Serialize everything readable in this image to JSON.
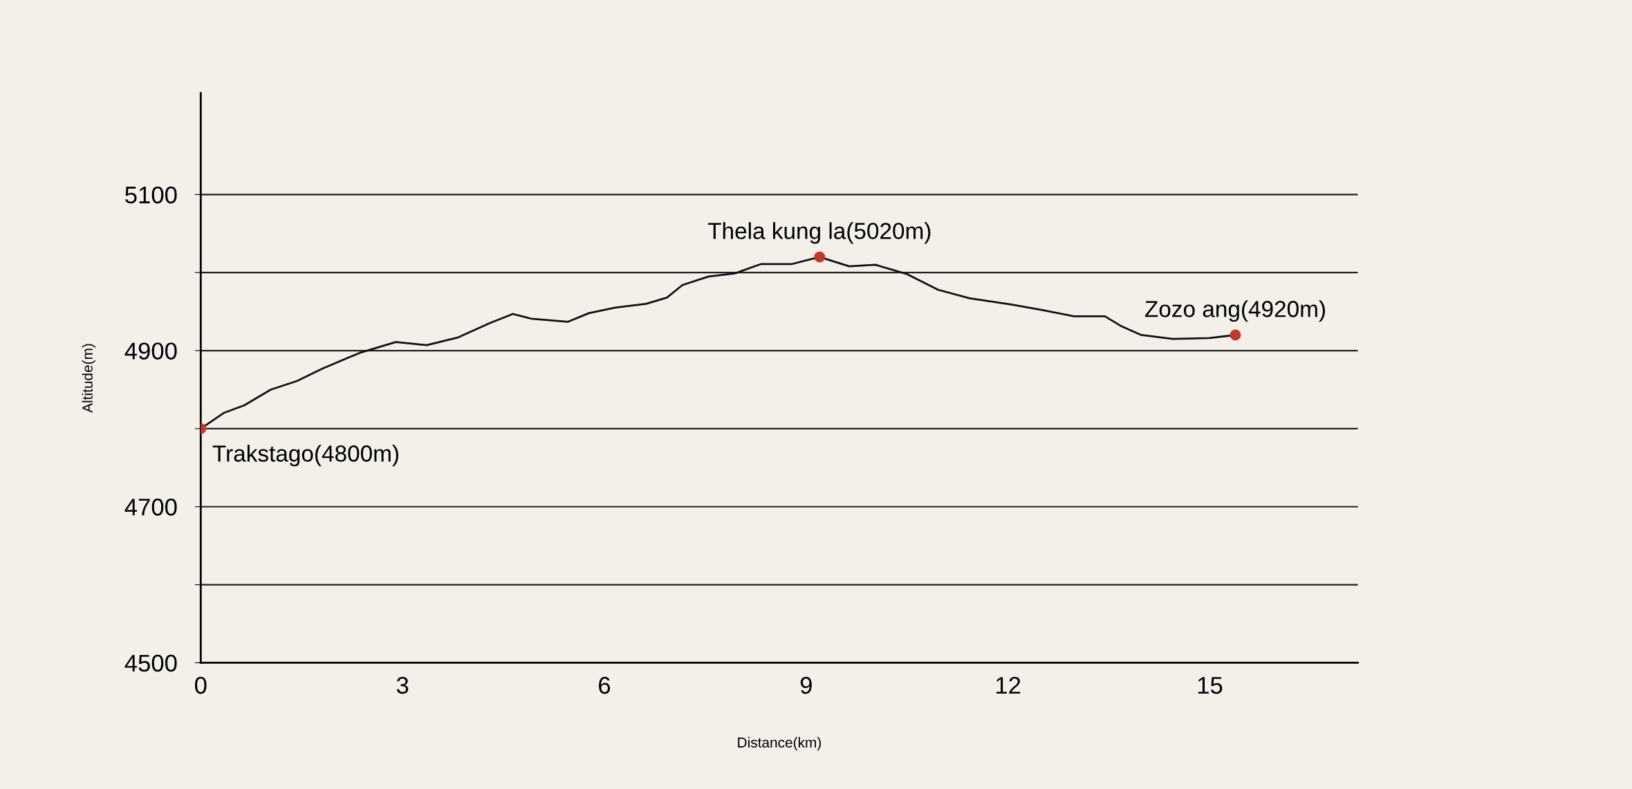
{
  "chart_data": {
    "type": "line",
    "xlabel": "Distance(km)",
    "ylabel": "Altitude(m)",
    "xlim": [
      0,
      17.2
    ],
    "ylim": [
      4500,
      5230
    ],
    "xticks": [
      0,
      3,
      6,
      9,
      12,
      15
    ],
    "yticks": [
      4500,
      {
        "value": 4600,
        "label": null
      },
      4700,
      {
        "value": 4800,
        "label": null
      },
      4900,
      {
        "value": 5000,
        "label": null
      },
      5100
    ],
    "grid": "y",
    "series": [
      {
        "color": "#111111",
        "marker": "none",
        "x": [
          0,
          0.34,
          0.65,
          1.04,
          1.43,
          1.81,
          2.36,
          2.9,
          3.36,
          3.83,
          4.29,
          4.64,
          4.91,
          5.46,
          5.77,
          6.16,
          6.62,
          6.93,
          7.16,
          7.55,
          7.94,
          8.33,
          8.79,
          9.2,
          9.64,
          10.03,
          10.5,
          10.96,
          11.43,
          12.05,
          12.51,
          12.98,
          13.44,
          13.67,
          13.98,
          14.45,
          14.99,
          15.38
        ],
        "values": [
          4800,
          4820,
          4830,
          4850,
          4861,
          4877,
          4897,
          4911,
          4907,
          4917,
          4935,
          4947,
          4941,
          4937,
          4948,
          4955,
          4960,
          4968,
          4984,
          4995,
          4999,
          5011,
          5011,
          5020,
          5008,
          5010,
          4998,
          4978,
          4967,
          4959,
          4952,
          4944,
          4944,
          4932,
          4920,
          4915,
          4916,
          4920
        ]
      },
      {
        "type": "scatter",
        "color": "#c0392b",
        "marker": "circle",
        "x": [
          0,
          9.2,
          15.38
        ],
        "values": [
          4800,
          5020,
          4920
        ]
      }
    ],
    "annotations": [
      {
        "text": "Trakstago(4800m)",
        "x": 0,
        "y": 4800
      },
      {
        "text": "Thela kung la(5020m)",
        "x": 9.2,
        "y": 5020
      },
      {
        "text": "Zozo ang(4920m)",
        "x": 15.38,
        "y": 4920
      }
    ]
  }
}
